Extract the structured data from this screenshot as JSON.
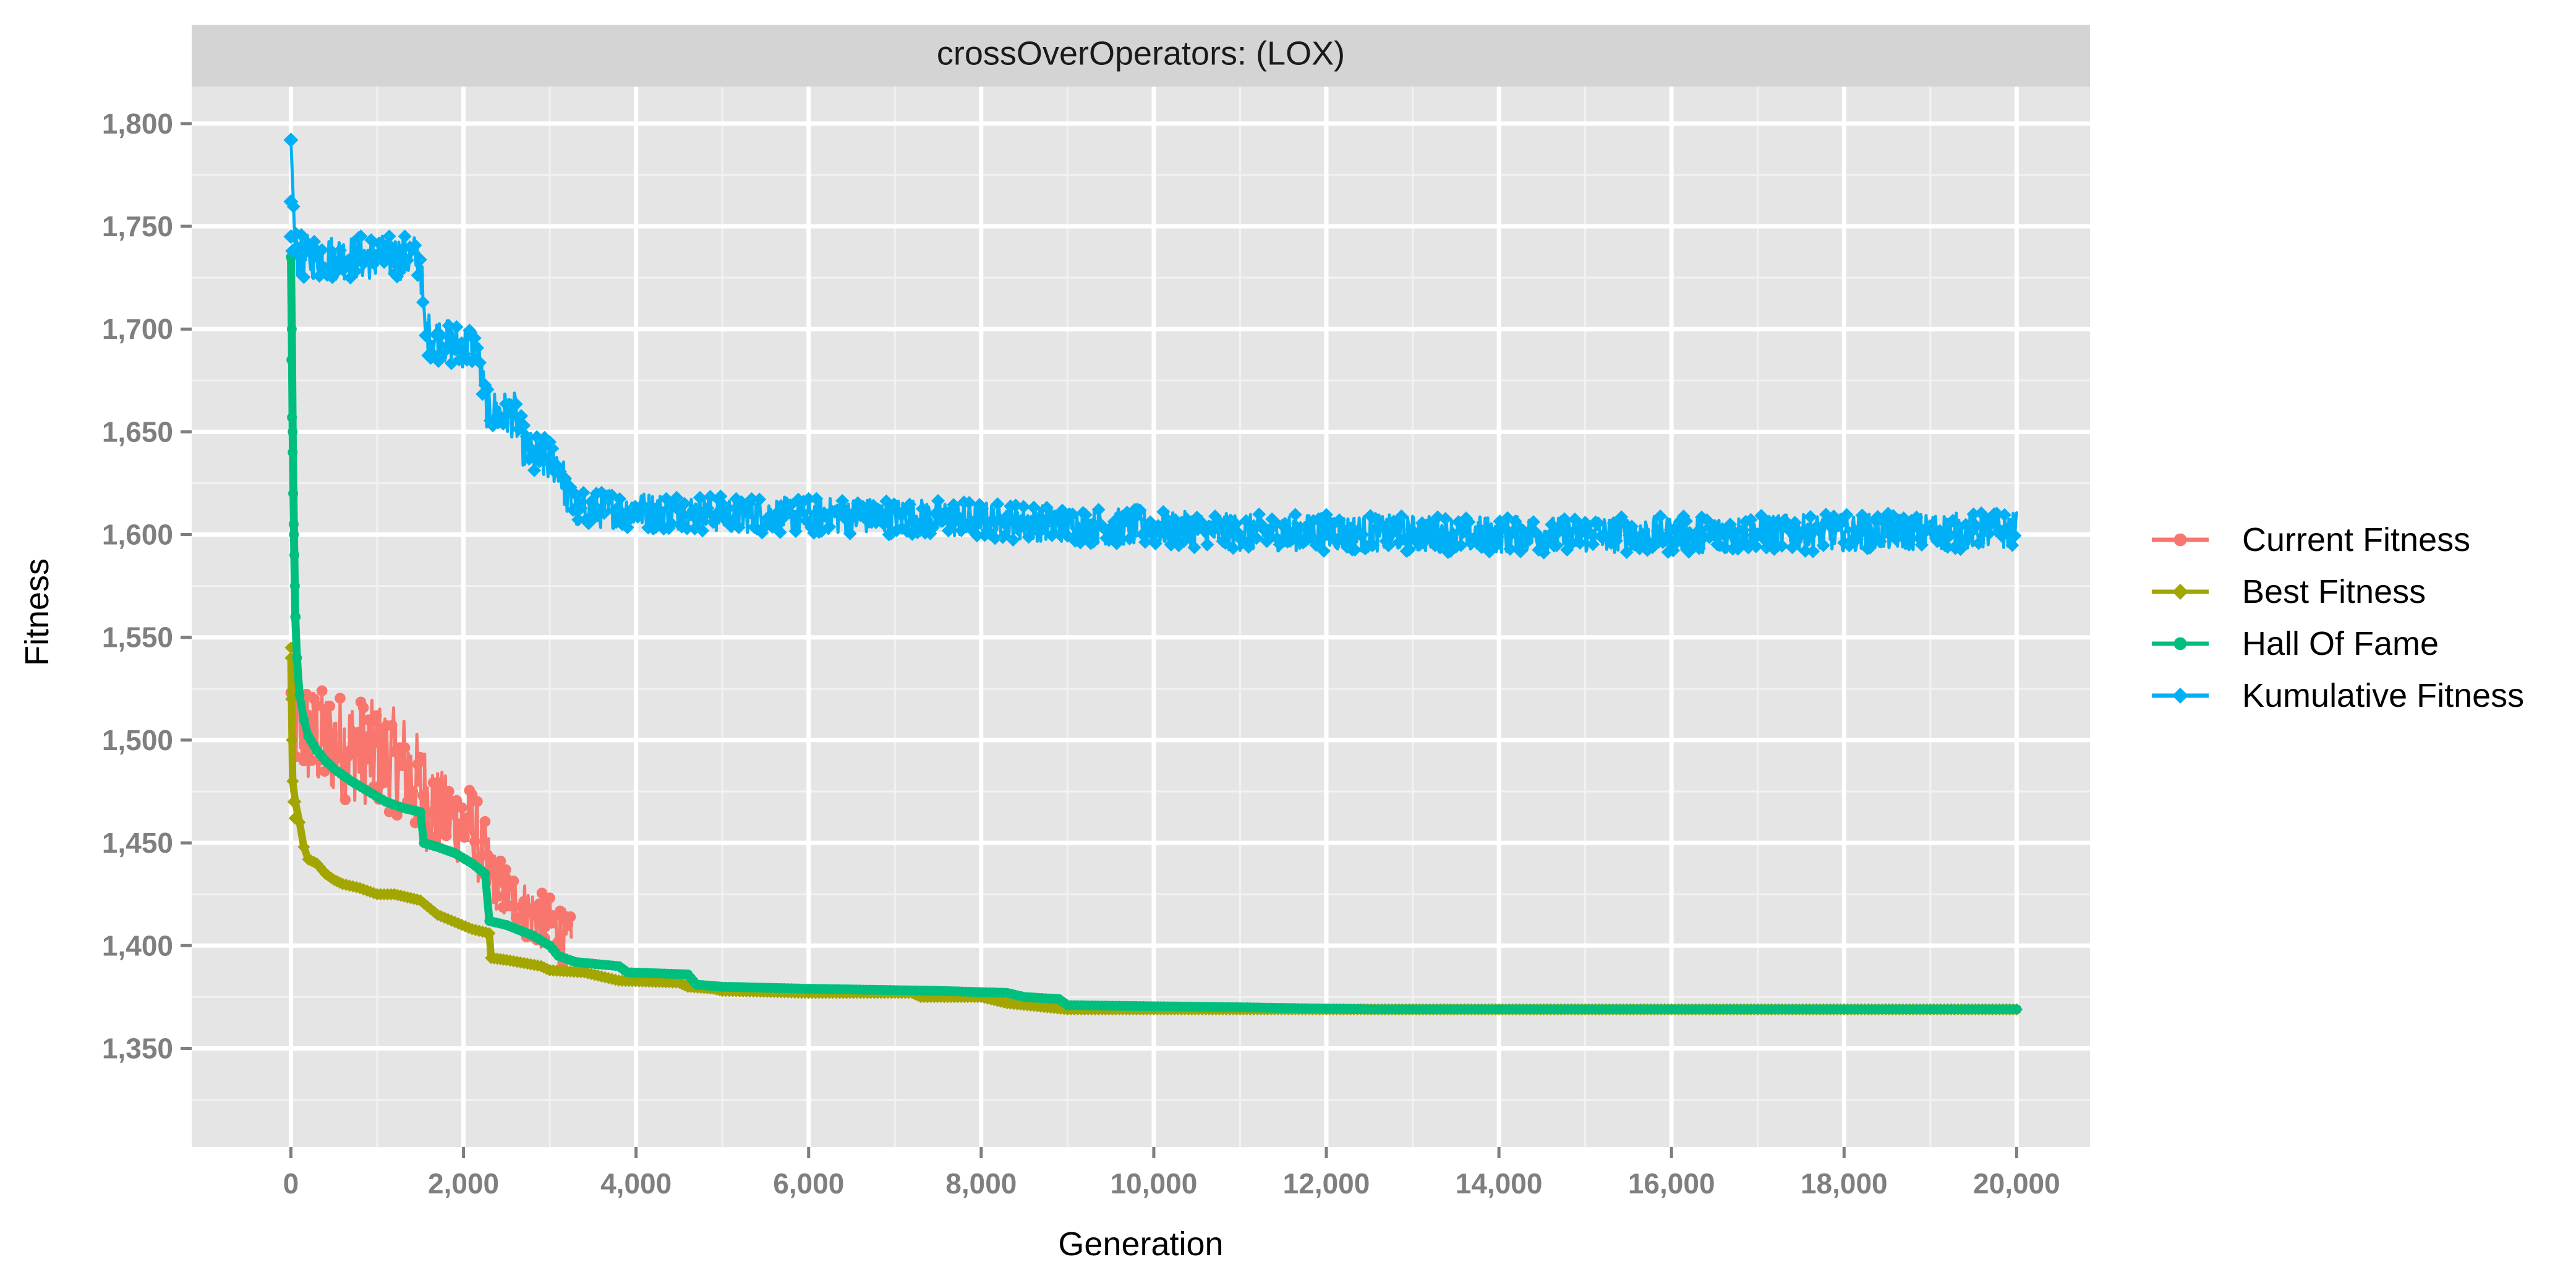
{
  "chart_data": {
    "type": "line",
    "facet_label": "crossOverOperators: (LOX)",
    "xlabel": "Generation",
    "ylabel": "Fitness",
    "xlim": [
      -1150,
      20850
    ],
    "ylim": [
      1302,
      1818
    ],
    "x_ticks": [
      0,
      2000,
      4000,
      6000,
      8000,
      10000,
      12000,
      14000,
      16000,
      18000,
      20000
    ],
    "x_tick_labels": [
      "0",
      "2,000",
      "4,000",
      "6,000",
      "8,000",
      "10,000",
      "12,000",
      "14,000",
      "16,000",
      "18,000",
      "20,000"
    ],
    "x_minor": [
      1000,
      3000,
      5000,
      7000,
      9000,
      11000,
      13000,
      15000,
      17000,
      19000
    ],
    "y_ticks": [
      1350,
      1400,
      1450,
      1500,
      1550,
      1600,
      1650,
      1700,
      1750,
      1800
    ],
    "y_tick_labels": [
      "1,350",
      "1,400",
      "1,450",
      "1,500",
      "1,550",
      "1,600",
      "1,650",
      "1,700",
      "1,750",
      "1,800"
    ],
    "y_minor": [
      1325,
      1375,
      1425,
      1475,
      1525,
      1575,
      1625,
      1675,
      1725,
      1775
    ],
    "grid": true,
    "legend_position": "right",
    "series": [
      {
        "name": "Current Fitness",
        "color": "#F8766D",
        "marker": "circle",
        "noise": 22,
        "x": [
          0,
          100,
          300,
          600,
          1000,
          1300,
          1600,
          1900,
          2100,
          2300,
          2500,
          2700,
          2900,
          3100,
          3250
        ],
        "y": [
          1515,
          1505,
          1500,
          1497,
          1493,
          1488,
          1470,
          1460,
          1458,
          1435,
          1425,
          1418,
          1412,
          1408,
          1400
        ]
      },
      {
        "name": "Best Fitness",
        "color": "#A3A500",
        "marker": "diamond",
        "noise": 0,
        "x": [
          0,
          20,
          50,
          100,
          150,
          200,
          300,
          400,
          500,
          600,
          800,
          1000,
          1200,
          1500,
          1700,
          2100,
          2300,
          2320,
          2500,
          2900,
          3000,
          3400,
          3800,
          4500,
          4600,
          4900,
          5000,
          6000,
          7200,
          7300,
          8000,
          8300,
          9000,
          10000,
          12000,
          20000
        ],
        "y": [
          1540,
          1480,
          1470,
          1460,
          1448,
          1442,
          1440,
          1435,
          1432,
          1430,
          1428,
          1425,
          1425,
          1422,
          1415,
          1408,
          1406,
          1394,
          1393,
          1390,
          1388,
          1387,
          1383,
          1382,
          1380,
          1379,
          1378,
          1377,
          1377,
          1375,
          1375,
          1372,
          1369,
          1369,
          1369,
          1369
        ]
      },
      {
        "name": "Hall Of Fame",
        "color": "#00BF7D",
        "marker": "circle",
        "noise": 0,
        "x": [
          0,
          10,
          20,
          35,
          50,
          70,
          100,
          150,
          200,
          300,
          400,
          500,
          700,
          900,
          1100,
          1300,
          1500,
          1540,
          1700,
          1900,
          2100,
          2250,
          2300,
          2500,
          2800,
          3000,
          3100,
          3300,
          3800,
          3900,
          4600,
          4700,
          5000,
          6000,
          7500,
          8300,
          8500,
          8900,
          9000,
          11000,
          12500,
          20000
        ],
        "y": [
          1735,
          1700,
          1650,
          1600,
          1560,
          1540,
          1522,
          1510,
          1502,
          1495,
          1490,
          1486,
          1480,
          1475,
          1470,
          1467,
          1465,
          1450,
          1448,
          1445,
          1440,
          1435,
          1412,
          1410,
          1405,
          1400,
          1395,
          1392,
          1390,
          1387,
          1386,
          1381,
          1380,
          1379,
          1378,
          1377,
          1375,
          1374,
          1371,
          1370,
          1369,
          1369
        ]
      },
      {
        "name": "Kumulative Fitness",
        "color": "#00B0F6",
        "marker": "diamond",
        "noise": 10,
        "x": [
          0,
          50,
          100,
          500,
          1000,
          1500,
          1550,
          1900,
          2150,
          2250,
          2300,
          2600,
          2700,
          2800,
          3100,
          3200,
          3300,
          4000,
          5000,
          6000,
          7000,
          8000,
          9000,
          10000,
          11000,
          12000,
          14000,
          16000,
          18000,
          20000
        ],
        "y": [
          1792,
          1738,
          1735,
          1735,
          1735,
          1735,
          1698,
          1692,
          1692,
          1665,
          1660,
          1658,
          1643,
          1638,
          1635,
          1620,
          1612,
          1612,
          1610,
          1609,
          1609,
          1607,
          1605,
          1603,
          1601,
          1601,
          1600,
          1600,
          1601,
          1602
        ]
      }
    ]
  }
}
